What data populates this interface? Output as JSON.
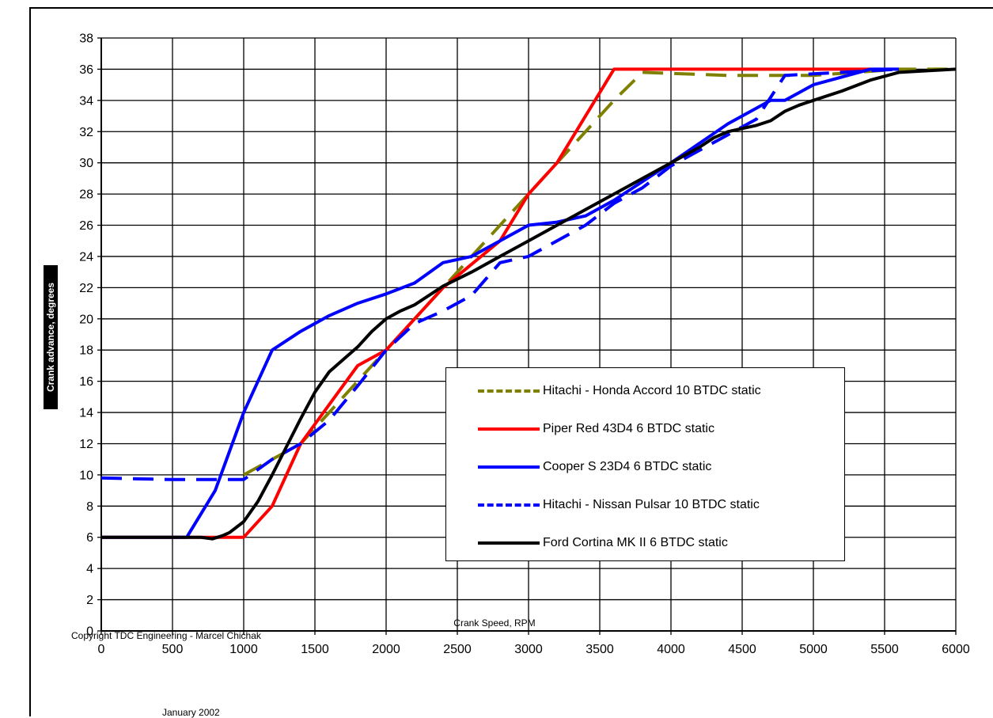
{
  "chart_data": {
    "type": "line",
    "title": "",
    "xlabel": "Crank Speed, RPM",
    "ylabel": "Crank advance, degrees",
    "xlim": [
      0,
      6000
    ],
    "ylim": [
      0,
      38
    ],
    "x_ticks": [
      "0",
      "500",
      "1000",
      "1500",
      "2000",
      "2500",
      "3000",
      "3500",
      "4000",
      "4500",
      "5000",
      "5500",
      "6000"
    ],
    "y_ticks": [
      "0",
      "2",
      "4",
      "6",
      "8",
      "10",
      "12",
      "14",
      "16",
      "18",
      "20",
      "22",
      "24",
      "26",
      "28",
      "30",
      "32",
      "34",
      "36",
      "38"
    ],
    "grid": true,
    "legend_position": "right",
    "series": [
      {
        "name": "Hitachi - Honda Accord 10 BTDC static",
        "color": "#808000",
        "dashed": true,
        "x": [
          1000,
          1200,
          1400,
          1600,
          1800,
          2000,
          2200,
          2400,
          2600,
          2800,
          3000,
          3200,
          3400,
          3600,
          3800,
          4400,
          5000,
          5600,
          6000
        ],
        "y": [
          10,
          11,
          12,
          14,
          16,
          18,
          20,
          22,
          24,
          26,
          28,
          30,
          32,
          34,
          35.8,
          35.6,
          35.6,
          36,
          36
        ]
      },
      {
        "name": "Piper Red 43D4 6 BTDC static",
        "color": "#ff0000",
        "dashed": false,
        "x": [
          0,
          800,
          1000,
          1200,
          1400,
          1800,
          2000,
          2200,
          2400,
          2800,
          3000,
          3200,
          3600,
          5400
        ],
        "y": [
          6,
          6,
          6,
          8,
          12,
          17,
          18,
          20,
          22,
          25,
          28,
          30,
          36,
          36
        ]
      },
      {
        "name": "Cooper S 23D4 6 BTDC static",
        "color": "#0000ff",
        "dashed": false,
        "x": [
          0,
          600,
          800,
          1000,
          1200,
          1400,
          1600,
          1800,
          2000,
          2200,
          2400,
          2600,
          2800,
          3000,
          3200,
          3400,
          3600,
          4000,
          4400,
          4700,
          4800,
          4900,
          5000,
          5200,
          5400,
          5600
        ],
        "y": [
          6,
          6,
          9,
          14,
          18,
          19.2,
          20.2,
          21,
          21.6,
          22.3,
          23.6,
          24,
          25,
          26,
          26.2,
          26.6,
          27.6,
          30,
          32.5,
          34,
          34,
          34.5,
          35,
          35.5,
          36,
          36
        ]
      },
      {
        "name": "Hitachi - Nissan Pulsar 10 BTDC static",
        "color": "#0000ff",
        "dashed": true,
        "x": [
          0,
          500,
          1000,
          1200,
          1400,
          1600,
          1800,
          2000,
          2200,
          2400,
          2600,
          2800,
          3000,
          3200,
          3400,
          3600,
          3800,
          4000,
          4200,
          4400,
          4600,
          4800,
          5000,
          5200,
          5600
        ],
        "y": [
          9.8,
          9.7,
          9.7,
          11,
          12,
          13.5,
          15.7,
          18,
          19.7,
          20.5,
          21.5,
          23.6,
          24,
          25,
          26,
          27.4,
          28.4,
          29.8,
          30.8,
          31.8,
          32.8,
          35.6,
          35.7,
          35.8,
          36
        ]
      },
      {
        "name": "Ford Cortina MK II 6 BTDC static",
        "color": "#000000",
        "dashed": false,
        "x": [
          0,
          700,
          780,
          850,
          900,
          1000,
          1100,
          1200,
          1300,
          1400,
          1500,
          1600,
          1700,
          1800,
          1900,
          2000,
          2100,
          2200,
          2400,
          2600,
          2800,
          3000,
          3200,
          3400,
          3600,
          3800,
          4000,
          4200,
          4300,
          4400,
          4500,
          4600,
          4700,
          4800,
          4900,
          5000,
          5200,
          5400,
          5600,
          6000
        ],
        "y": [
          6,
          6,
          5.9,
          6.1,
          6.3,
          7,
          8.3,
          10,
          11.8,
          13.6,
          15.3,
          16.6,
          17.4,
          18.2,
          19.2,
          20,
          20.5,
          20.9,
          22.1,
          23,
          24,
          25,
          26,
          27,
          28,
          29,
          30,
          31,
          31.6,
          32,
          32.2,
          32.4,
          32.7,
          33.3,
          33.7,
          34,
          34.6,
          35.3,
          35.8,
          36
        ]
      }
    ]
  },
  "footer": {
    "copyright": "Copyright TDC Engineering - Marcel Chichak",
    "date": "January 2002"
  }
}
